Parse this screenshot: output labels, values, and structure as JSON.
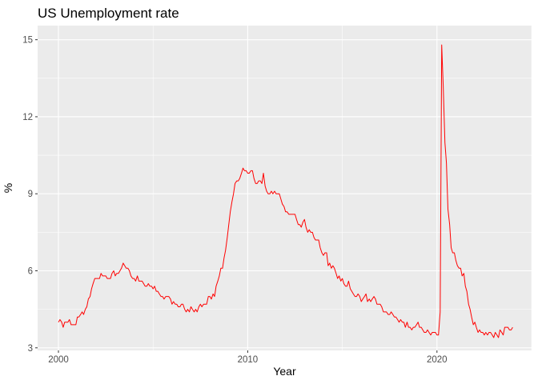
{
  "chart_data": {
    "type": "line",
    "title": "US Unemployment rate",
    "xlabel": "Year",
    "ylabel": "%",
    "xlim": [
      1998.9,
      2025.0
    ],
    "ylim": [
      2.9,
      15.55
    ],
    "x_ticks": [
      2000,
      2010,
      2020
    ],
    "y_ticks": [
      3,
      6,
      9,
      12,
      15
    ],
    "grid": true,
    "legend": "none",
    "colors": {
      "panel": "#ebebeb",
      "grid_major": "#ffffff",
      "line": "#ff0000",
      "tick_label": "#4d4d4d"
    },
    "series": [
      {
        "x": [
          2000.0,
          2000.08,
          2000.17,
          2000.25,
          2000.33,
          2000.42,
          2000.5,
          2000.58,
          2000.67,
          2000.75,
          2000.83,
          2000.92,
          2001.0,
          2001.08,
          2001.17,
          2001.25,
          2001.33,
          2001.42,
          2001.5,
          2001.58,
          2001.67,
          2001.75,
          2001.83,
          2001.92,
          2002.0,
          2002.08,
          2002.17,
          2002.25,
          2002.33,
          2002.42,
          2002.5,
          2002.58,
          2002.67,
          2002.75,
          2002.83,
          2002.92,
          2003.0,
          2003.08,
          2003.17,
          2003.25,
          2003.33,
          2003.42,
          2003.5,
          2003.58,
          2003.67,
          2003.75,
          2003.83,
          2003.92,
          2004.0,
          2004.08,
          2004.17,
          2004.25,
          2004.33,
          2004.42,
          2004.5,
          2004.58,
          2004.67,
          2004.75,
          2004.83,
          2004.92,
          2005.0,
          2005.08,
          2005.17,
          2005.25,
          2005.33,
          2005.42,
          2005.5,
          2005.58,
          2005.67,
          2005.75,
          2005.83,
          2005.92,
          2006.0,
          2006.08,
          2006.17,
          2006.25,
          2006.33,
          2006.42,
          2006.5,
          2006.58,
          2006.67,
          2006.75,
          2006.83,
          2006.92,
          2007.0,
          2007.08,
          2007.17,
          2007.25,
          2007.33,
          2007.42,
          2007.5,
          2007.58,
          2007.67,
          2007.75,
          2007.83,
          2007.92,
          2008.0,
          2008.08,
          2008.17,
          2008.25,
          2008.33,
          2008.42,
          2008.5,
          2008.58,
          2008.67,
          2008.75,
          2008.83,
          2008.92,
          2009.0,
          2009.08,
          2009.17,
          2009.25,
          2009.33,
          2009.42,
          2009.5,
          2009.58,
          2009.67,
          2009.75,
          2009.83,
          2009.92,
          2010.0,
          2010.08,
          2010.17,
          2010.25,
          2010.33,
          2010.42,
          2010.5,
          2010.58,
          2010.67,
          2010.75,
          2010.83,
          2010.92,
          2011.0,
          2011.08,
          2011.17,
          2011.25,
          2011.33,
          2011.42,
          2011.5,
          2011.58,
          2011.67,
          2011.75,
          2011.83,
          2011.92,
          2012.0,
          2012.08,
          2012.17,
          2012.25,
          2012.33,
          2012.42,
          2012.5,
          2012.58,
          2012.67,
          2012.75,
          2012.83,
          2012.92,
          2013.0,
          2013.08,
          2013.17,
          2013.25,
          2013.33,
          2013.42,
          2013.5,
          2013.58,
          2013.67,
          2013.75,
          2013.83,
          2013.92,
          2014.0,
          2014.08,
          2014.17,
          2014.25,
          2014.33,
          2014.42,
          2014.5,
          2014.58,
          2014.67,
          2014.75,
          2014.83,
          2014.92,
          2015.0,
          2015.08,
          2015.17,
          2015.25,
          2015.33,
          2015.42,
          2015.5,
          2015.58,
          2015.67,
          2015.75,
          2015.83,
          2015.92,
          2016.0,
          2016.08,
          2016.17,
          2016.25,
          2016.33,
          2016.42,
          2016.5,
          2016.58,
          2016.67,
          2016.75,
          2016.83,
          2016.92,
          2017.0,
          2017.08,
          2017.17,
          2017.25,
          2017.33,
          2017.42,
          2017.5,
          2017.58,
          2017.67,
          2017.75,
          2017.83,
          2017.92,
          2018.0,
          2018.08,
          2018.17,
          2018.25,
          2018.33,
          2018.42,
          2018.5,
          2018.58,
          2018.67,
          2018.75,
          2018.83,
          2018.92,
          2019.0,
          2019.08,
          2019.17,
          2019.25,
          2019.33,
          2019.42,
          2019.5,
          2019.58,
          2019.67,
          2019.75,
          2019.83,
          2019.92,
          2020.0,
          2020.08,
          2020.17,
          2020.25,
          2020.33,
          2020.42,
          2020.5,
          2020.58,
          2020.67,
          2020.75,
          2020.83,
          2020.92,
          2021.0,
          2021.08,
          2021.17,
          2021.25,
          2021.33,
          2021.42,
          2021.5,
          2021.58,
          2021.67,
          2021.75,
          2021.83,
          2021.92,
          2022.0,
          2022.08,
          2022.17,
          2022.25,
          2022.33,
          2022.42,
          2022.5,
          2022.58,
          2022.67,
          2022.75,
          2022.83,
          2022.92,
          2023.0,
          2023.08,
          2023.17,
          2023.25,
          2023.33,
          2023.42,
          2023.5,
          2023.58,
          2023.67,
          2023.75,
          2023.83,
          2023.92,
          2024.0
        ],
        "values": [
          4.0,
          4.1,
          4.0,
          3.8,
          4.0,
          4.0,
          4.0,
          4.1,
          3.9,
          3.9,
          3.9,
          3.9,
          4.2,
          4.2,
          4.3,
          4.4,
          4.3,
          4.5,
          4.6,
          4.9,
          5.0,
          5.3,
          5.5,
          5.7,
          5.7,
          5.7,
          5.7,
          5.9,
          5.8,
          5.8,
          5.8,
          5.7,
          5.7,
          5.7,
          5.9,
          6.0,
          5.8,
          5.9,
          5.9,
          6.0,
          6.1,
          6.3,
          6.2,
          6.1,
          6.1,
          6.0,
          5.8,
          5.7,
          5.7,
          5.6,
          5.8,
          5.6,
          5.6,
          5.6,
          5.5,
          5.4,
          5.4,
          5.5,
          5.4,
          5.4,
          5.3,
          5.4,
          5.2,
          5.2,
          5.1,
          5.0,
          5.0,
          4.9,
          5.0,
          5.0,
          5.0,
          4.9,
          4.7,
          4.8,
          4.7,
          4.7,
          4.6,
          4.6,
          4.7,
          4.7,
          4.5,
          4.4,
          4.5,
          4.4,
          4.6,
          4.5,
          4.4,
          4.5,
          4.4,
          4.6,
          4.7,
          4.6,
          4.7,
          4.7,
          4.7,
          5.0,
          5.0,
          4.9,
          5.1,
          5.0,
          5.4,
          5.6,
          5.8,
          6.1,
          6.1,
          6.5,
          6.8,
          7.3,
          7.8,
          8.3,
          8.7,
          9.0,
          9.4,
          9.5,
          9.5,
          9.6,
          9.8,
          10.0,
          9.9,
          9.9,
          9.8,
          9.8,
          9.9,
          9.9,
          9.6,
          9.4,
          9.4,
          9.5,
          9.5,
          9.4,
          9.8,
          9.3,
          9.1,
          9.0,
          9.0,
          9.1,
          9.0,
          9.1,
          9.0,
          9.0,
          9.0,
          8.8,
          8.6,
          8.5,
          8.3,
          8.3,
          8.2,
          8.2,
          8.2,
          8.2,
          8.2,
          8.0,
          7.8,
          7.8,
          7.7,
          7.9,
          8.0,
          7.7,
          7.5,
          7.6,
          7.5,
          7.5,
          7.3,
          7.2,
          7.2,
          7.2,
          6.9,
          6.7,
          6.6,
          6.7,
          6.7,
          6.2,
          6.3,
          6.1,
          6.2,
          6.1,
          5.9,
          5.7,
          5.8,
          5.6,
          5.7,
          5.5,
          5.4,
          5.4,
          5.6,
          5.3,
          5.2,
          5.1,
          5.0,
          5.0,
          5.1,
          5.0,
          4.8,
          4.9,
          5.0,
          5.1,
          4.8,
          4.9,
          4.8,
          4.9,
          5.0,
          4.9,
          4.7,
          4.7,
          4.7,
          4.6,
          4.4,
          4.4,
          4.4,
          4.3,
          4.3,
          4.4,
          4.3,
          4.2,
          4.2,
          4.1,
          4.0,
          4.1,
          4.0,
          4.0,
          3.8,
          4.0,
          3.8,
          3.8,
          3.7,
          3.8,
          3.8,
          3.9,
          4.0,
          3.8,
          3.8,
          3.7,
          3.6,
          3.6,
          3.7,
          3.6,
          3.5,
          3.6,
          3.6,
          3.6,
          3.5,
          3.5,
          4.4,
          14.8,
          13.2,
          11.0,
          10.2,
          8.4,
          7.8,
          6.9,
          6.7,
          6.7,
          6.4,
          6.2,
          6.1,
          6.1,
          5.8,
          5.9,
          5.4,
          5.2,
          4.7,
          4.5,
          4.2,
          3.9,
          4.0,
          3.8,
          3.6,
          3.7,
          3.6,
          3.6,
          3.5,
          3.6,
          3.5,
          3.6,
          3.6,
          3.5,
          3.4,
          3.6,
          3.5,
          3.4,
          3.7,
          3.6,
          3.5,
          3.8,
          3.8,
          3.8,
          3.7,
          3.7,
          3.8
        ]
      }
    ]
  }
}
